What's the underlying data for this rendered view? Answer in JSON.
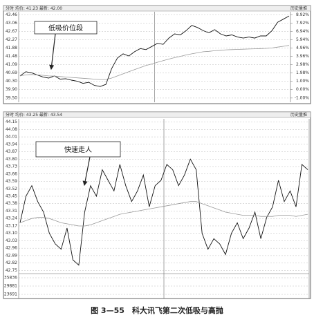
{
  "chart_data": [
    {
      "type": "line",
      "header": "分时 均价: 41.23 最新: 42.00",
      "button": "历史量推",
      "annotation": "低吸价位段",
      "ylim": [
        39.3,
        43.6
      ],
      "yticks": [
        {
          "value": 39.5,
          "label": "39.50"
        },
        {
          "value": 39.9,
          "label": "39.90"
        },
        {
          "value": 40.3,
          "label": "40.30"
        },
        40.69,
        41.09,
        41.48,
        41.88,
        42.27,
        42.67,
        43.06,
        43.46
      ],
      "y2lim": [
        -1.504,
        9.273
      ],
      "y2ticks": [
        {
          "value": -1.0,
          "label": "-1.00%"
        },
        {
          "value": 0.0,
          "label": "0.00%"
        },
        {
          "value": 1.0,
          "label": "1.00%"
        },
        {
          "value": 1.98,
          "label": "1.98%"
        },
        {
          "value": 2.98,
          "label": "2.98%"
        },
        {
          "value": 3.96,
          "label": "3.96%"
        },
        {
          "value": 4.96,
          "label": "4.96%"
        },
        {
          "value": 5.94,
          "label": "5.94%"
        },
        {
          "value": 6.94,
          "label": "6.94%"
        },
        {
          "value": 7.92,
          "label": "7.92%"
        },
        {
          "value": 8.92,
          "label": "8.92%"
        }
      ],
      "grid": true,
      "series": [
        {
          "color": "#111111",
          "values": [
            40.55,
            40.75,
            40.7,
            40.6,
            40.5,
            40.45,
            40.55,
            40.4,
            40.42,
            40.35,
            40.3,
            40.2,
            40.25,
            40.1,
            40.05,
            40.15,
            40.9,
            41.4,
            41.6,
            41.5,
            41.7,
            41.85,
            41.8,
            41.95,
            42.1,
            42.05,
            42.35,
            42.55,
            42.5,
            42.7,
            42.95,
            42.85,
            42.7,
            42.6,
            42.75,
            42.55,
            42.45,
            42.5,
            42.4,
            42.35,
            42.4,
            42.35,
            42.45,
            42.45,
            42.7,
            43.1,
            43.25,
            43.4
          ]
        },
        {
          "color": "#999999",
          "values": [
            40.55,
            40.6,
            40.62,
            40.6,
            40.58,
            40.55,
            40.54,
            40.52,
            40.5,
            40.48,
            40.46,
            40.44,
            40.42,
            40.4,
            40.38,
            40.38,
            40.45,
            40.55,
            40.65,
            40.75,
            40.85,
            40.95,
            41.05,
            41.12,
            41.2,
            41.28,
            41.35,
            41.42,
            41.48,
            41.55,
            41.6,
            41.65,
            41.7,
            41.72,
            41.75,
            41.77,
            41.79,
            41.8,
            41.81,
            41.82,
            41.83,
            41.84,
            41.85,
            41.86,
            41.88,
            41.92,
            41.96,
            42.0
          ]
        }
      ]
    },
    {
      "type": "line",
      "header": "分时 均价: 43.25 最新: 43.54",
      "button": "历史量推",
      "annotation": "快速走人",
      "ylim": [
        42.72,
        44.18
      ],
      "yticks": [
        42.75,
        42.82,
        42.89,
        42.96,
        43.03,
        {
          "value": 43.1,
          "label": "43.10"
        },
        43.17,
        43.24,
        43.31,
        43.38,
        43.45,
        43.52,
        43.59,
        43.66,
        43.73,
        {
          "value": 43.8,
          "label": "43.80"
        },
        43.87,
        43.94,
        44.01,
        44.08,
        44.15
      ],
      "volume_labels": [
        "35836",
        "29881",
        "23691"
      ],
      "grid": true,
      "series": [
        {
          "color": "#111111",
          "values": [
            43.2,
            43.45,
            43.55,
            43.4,
            43.3,
            43.1,
            43.0,
            42.95,
            43.15,
            42.85,
            42.8,
            43.3,
            43.55,
            43.45,
            43.7,
            43.6,
            43.5,
            43.75,
            43.55,
            43.4,
            43.5,
            43.65,
            43.35,
            43.55,
            43.6,
            43.75,
            43.7,
            43.55,
            43.65,
            43.8,
            43.7,
            43.1,
            42.95,
            43.05,
            43.0,
            42.9,
            43.1,
            43.2,
            43.05,
            43.15,
            43.3,
            43.05,
            43.25,
            43.35,
            43.6,
            43.4,
            43.5,
            43.35,
            43.75,
            43.7
          ]
        },
        {
          "color": "#999999",
          "values": [
            43.2,
            43.22,
            43.24,
            43.25,
            43.25,
            43.24,
            43.22,
            43.2,
            43.19,
            43.18,
            43.17,
            43.17,
            43.18,
            43.2,
            43.22,
            43.24,
            43.26,
            43.28,
            43.29,
            43.3,
            43.31,
            43.32,
            43.33,
            43.34,
            43.35,
            43.36,
            43.37,
            43.38,
            43.39,
            43.4,
            43.4,
            43.38,
            43.36,
            43.34,
            43.32,
            43.3,
            43.29,
            43.28,
            43.27,
            43.27,
            43.27,
            43.26,
            43.26,
            43.26,
            43.27,
            43.27,
            43.27,
            43.26,
            43.27,
            43.28
          ]
        }
      ]
    }
  ],
  "caption": "图 3—55　科大讯飞第二次低吸与高抛"
}
